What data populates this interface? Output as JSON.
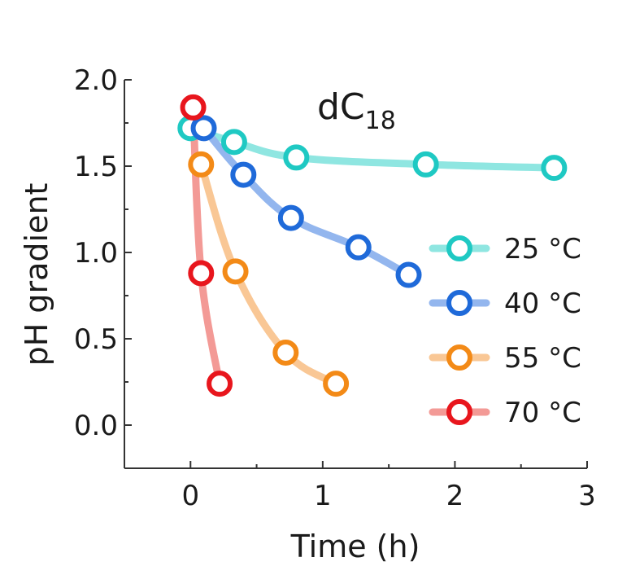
{
  "chart_data": {
    "type": "scatter",
    "title": "dC",
    "title_subscript": "18",
    "xlabel": "Time (h)",
    "ylabel": "pH gradient",
    "xlim": [
      -0.5,
      3
    ],
    "ylim": [
      -0.25,
      2.0
    ],
    "x_ticks": [
      0,
      1,
      2,
      3
    ],
    "x_tick_labels": [
      "0",
      "1",
      "2",
      "3"
    ],
    "y_ticks": [
      0.0,
      0.5,
      1.0,
      1.5,
      2.0
    ],
    "y_tick_labels": [
      "0.0",
      "0.5",
      "1.0",
      "1.5",
      "2.0"
    ],
    "legend_position": "right",
    "series": [
      {
        "name": "25 °C",
        "color": "#1fc9c3",
        "line_color": "#8fe6e1",
        "x": [
          0.0,
          0.33,
          0.8,
          1.78,
          2.75
        ],
        "y": [
          1.72,
          1.64,
          1.55,
          1.51,
          1.49
        ]
      },
      {
        "name": "40 °C",
        "color": "#1f6ad9",
        "line_color": "#93b6ee",
        "x": [
          0.1,
          0.4,
          0.76,
          1.27,
          1.65
        ],
        "y": [
          1.72,
          1.45,
          1.2,
          1.03,
          0.87
        ]
      },
      {
        "name": "55 °C",
        "color": "#f38a17",
        "line_color": "#f9c795",
        "x": [
          0.08,
          0.34,
          0.72,
          1.1
        ],
        "y": [
          1.51,
          0.89,
          0.42,
          0.24
        ]
      },
      {
        "name": "70 °C",
        "color": "#e8161d",
        "line_color": "#f39a96",
        "x": [
          0.02,
          0.08,
          0.22
        ],
        "y": [
          1.84,
          0.88,
          0.24
        ]
      }
    ]
  }
}
